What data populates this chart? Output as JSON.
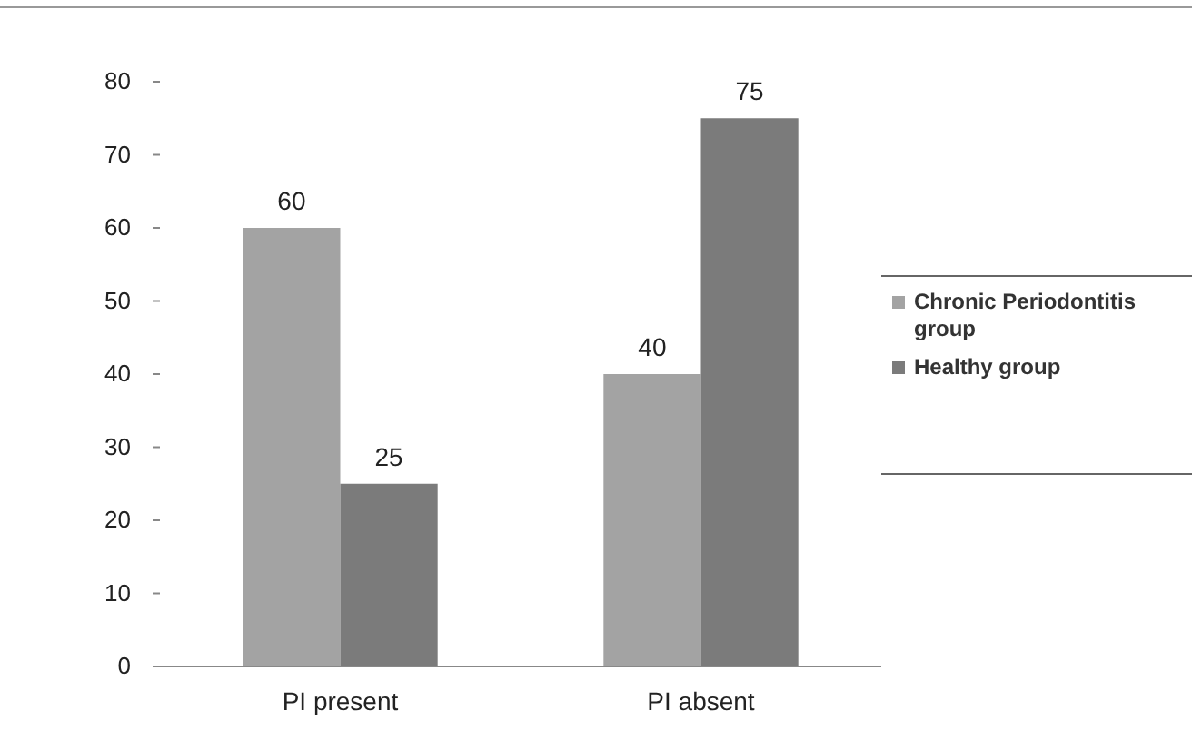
{
  "chart_data": {
    "type": "bar",
    "categories": [
      "PI present",
      "PI absent"
    ],
    "series": [
      {
        "name": "Chronic Periodontitis group",
        "color": "#a3a3a3",
        "values": [
          60,
          40
        ]
      },
      {
        "name": "Healthy group",
        "color": "#7b7b7b",
        "values": [
          25,
          75
        ]
      }
    ],
    "ylim": [
      0,
      80
    ],
    "yticks": [
      0,
      10,
      20,
      30,
      40,
      50,
      60,
      70,
      80
    ],
    "data_labels": true,
    "legend": "right",
    "grid": false
  }
}
